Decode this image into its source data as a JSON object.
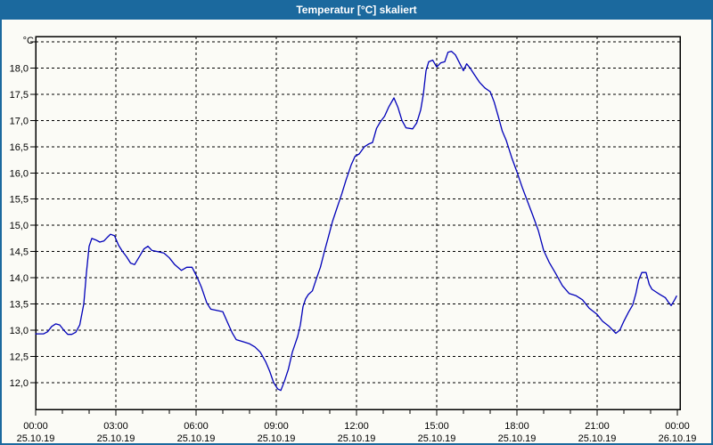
{
  "titlebar": {
    "title": "Temperatur [°C] skaliert"
  },
  "theme": {
    "titlebar_bg": "#1B699E",
    "titlebar_text": "#FFFFFF",
    "window_border": "#1B699E",
    "window_bg": "#FBFBF6",
    "plot_border": "#000000",
    "grid_color": "#000000",
    "line_color": "#0000B9"
  },
  "chart_data": {
    "type": "line",
    "title": "Temperatur [°C] skaliert",
    "unit_label": "°C",
    "xlabel": "",
    "ylabel": "°C",
    "legend": "none",
    "grid": "dashed",
    "ylim": [
      11.5,
      18.6
    ],
    "xlim_hours": [
      0,
      24.1
    ],
    "x_minor_step_hours": 1,
    "y_ticks": [
      {
        "v": 12.0,
        "label": "12,0"
      },
      {
        "v": 12.5,
        "label": "12,5"
      },
      {
        "v": 13.0,
        "label": "13,0"
      },
      {
        "v": 13.5,
        "label": "13,5"
      },
      {
        "v": 14.0,
        "label": "14,0"
      },
      {
        "v": 14.5,
        "label": "14,5"
      },
      {
        "v": 15.0,
        "label": "15,0"
      },
      {
        "v": 15.5,
        "label": "15,5"
      },
      {
        "v": 16.0,
        "label": "16,0"
      },
      {
        "v": 16.5,
        "label": "16,5"
      },
      {
        "v": 17.0,
        "label": "17,0"
      },
      {
        "v": 17.5,
        "label": "17,5"
      },
      {
        "v": 18.0,
        "label": "18,0"
      },
      {
        "v": 18.5,
        "label": ""
      }
    ],
    "x_ticks": [
      {
        "h": 0,
        "time": "00:00",
        "date": "25.10.19"
      },
      {
        "h": 3,
        "time": "03:00",
        "date": "25.10.19"
      },
      {
        "h": 6,
        "time": "06:00",
        "date": "25.10.19"
      },
      {
        "h": 9,
        "time": "09:00",
        "date": "25.10.19"
      },
      {
        "h": 12,
        "time": "12:00",
        "date": "25.10.19"
      },
      {
        "h": 15,
        "time": "15:00",
        "date": "25.10.19"
      },
      {
        "h": 18,
        "time": "18:00",
        "date": "25.10.19"
      },
      {
        "h": 21,
        "time": "21:00",
        "date": "25.10.19"
      },
      {
        "h": 24,
        "time": "00:00",
        "date": "26.10.19"
      }
    ],
    "series": [
      {
        "name": "Temperatur [°C]",
        "color": "#0000B9",
        "points": [
          [
            0,
            12.93
          ],
          [
            0.3,
            12.93
          ],
          [
            0.45,
            12.97
          ],
          [
            0.6,
            13.07
          ],
          [
            0.75,
            13.12
          ],
          [
            0.9,
            13.1
          ],
          [
            1.05,
            13.0
          ],
          [
            1.2,
            12.92
          ],
          [
            1.35,
            12.92
          ],
          [
            1.5,
            12.96
          ],
          [
            1.65,
            13.1
          ],
          [
            1.8,
            13.5
          ],
          [
            1.9,
            14.1
          ],
          [
            2.0,
            14.6
          ],
          [
            2.1,
            14.75
          ],
          [
            2.25,
            14.72
          ],
          [
            2.4,
            14.68
          ],
          [
            2.55,
            14.7
          ],
          [
            2.7,
            14.78
          ],
          [
            2.8,
            14.83
          ],
          [
            2.95,
            14.8
          ],
          [
            3.1,
            14.62
          ],
          [
            3.25,
            14.5
          ],
          [
            3.4,
            14.4
          ],
          [
            3.55,
            14.28
          ],
          [
            3.7,
            14.25
          ],
          [
            3.9,
            14.42
          ],
          [
            4.05,
            14.55
          ],
          [
            4.2,
            14.6
          ],
          [
            4.35,
            14.52
          ],
          [
            4.55,
            14.5
          ],
          [
            4.8,
            14.47
          ],
          [
            5.0,
            14.38
          ],
          [
            5.2,
            14.25
          ],
          [
            5.45,
            14.14
          ],
          [
            5.65,
            14.2
          ],
          [
            5.85,
            14.2
          ],
          [
            6.05,
            14.0
          ],
          [
            6.2,
            13.82
          ],
          [
            6.4,
            13.52
          ],
          [
            6.55,
            13.4
          ],
          [
            6.75,
            13.38
          ],
          [
            7.0,
            13.35
          ],
          [
            7.2,
            13.12
          ],
          [
            7.35,
            12.95
          ],
          [
            7.5,
            12.82
          ],
          [
            7.75,
            12.78
          ],
          [
            8.0,
            12.74
          ],
          [
            8.2,
            12.68
          ],
          [
            8.4,
            12.58
          ],
          [
            8.6,
            12.4
          ],
          [
            8.75,
            12.22
          ],
          [
            8.9,
            12.0
          ],
          [
            9.05,
            11.88
          ],
          [
            9.17,
            11.85
          ],
          [
            9.3,
            12.02
          ],
          [
            9.45,
            12.25
          ],
          [
            9.6,
            12.58
          ],
          [
            9.8,
            12.88
          ],
          [
            9.9,
            13.1
          ],
          [
            10.0,
            13.45
          ],
          [
            10.1,
            13.6
          ],
          [
            10.2,
            13.68
          ],
          [
            10.35,
            13.75
          ],
          [
            10.5,
            13.98
          ],
          [
            10.65,
            14.2
          ],
          [
            10.8,
            14.5
          ],
          [
            10.95,
            14.78
          ],
          [
            11.1,
            15.07
          ],
          [
            11.25,
            15.3
          ],
          [
            11.45,
            15.6
          ],
          [
            11.6,
            15.85
          ],
          [
            11.8,
            16.15
          ],
          [
            11.95,
            16.32
          ],
          [
            12.1,
            16.36
          ],
          [
            12.3,
            16.5
          ],
          [
            12.45,
            16.55
          ],
          [
            12.6,
            16.58
          ],
          [
            12.75,
            16.85
          ],
          [
            12.9,
            16.98
          ],
          [
            13.05,
            17.08
          ],
          [
            13.2,
            17.25
          ],
          [
            13.4,
            17.43
          ],
          [
            13.55,
            17.25
          ],
          [
            13.7,
            17.0
          ],
          [
            13.85,
            16.86
          ],
          [
            14.1,
            16.84
          ],
          [
            14.25,
            16.95
          ],
          [
            14.4,
            17.2
          ],
          [
            14.5,
            17.5
          ],
          [
            14.6,
            17.95
          ],
          [
            14.7,
            18.12
          ],
          [
            14.85,
            18.15
          ],
          [
            15.0,
            18.02
          ],
          [
            15.15,
            18.1
          ],
          [
            15.3,
            18.12
          ],
          [
            15.42,
            18.3
          ],
          [
            15.55,
            18.32
          ],
          [
            15.7,
            18.25
          ],
          [
            15.85,
            18.1
          ],
          [
            16.0,
            17.95
          ],
          [
            16.12,
            18.08
          ],
          [
            16.25,
            18.0
          ],
          [
            16.4,
            17.88
          ],
          [
            16.6,
            17.73
          ],
          [
            16.8,
            17.62
          ],
          [
            17.0,
            17.55
          ],
          [
            17.15,
            17.35
          ],
          [
            17.3,
            17.08
          ],
          [
            17.45,
            16.8
          ],
          [
            17.6,
            16.62
          ],
          [
            17.8,
            16.3
          ],
          [
            18.0,
            16.02
          ],
          [
            18.2,
            15.72
          ],
          [
            18.4,
            15.45
          ],
          [
            18.6,
            15.18
          ],
          [
            18.8,
            14.9
          ],
          [
            19.0,
            14.52
          ],
          [
            19.2,
            14.3
          ],
          [
            19.45,
            14.08
          ],
          [
            19.7,
            13.85
          ],
          [
            19.95,
            13.7
          ],
          [
            20.2,
            13.66
          ],
          [
            20.45,
            13.58
          ],
          [
            20.7,
            13.42
          ],
          [
            21.0,
            13.3
          ],
          [
            21.2,
            13.17
          ],
          [
            21.45,
            13.07
          ],
          [
            21.7,
            12.94
          ],
          [
            21.85,
            13.0
          ],
          [
            22.0,
            13.17
          ],
          [
            22.17,
            13.34
          ],
          [
            22.33,
            13.48
          ],
          [
            22.45,
            13.7
          ],
          [
            22.55,
            13.95
          ],
          [
            22.67,
            14.1
          ],
          [
            22.83,
            14.1
          ],
          [
            22.95,
            13.87
          ],
          [
            23.05,
            13.78
          ],
          [
            23.2,
            13.73
          ],
          [
            23.35,
            13.68
          ],
          [
            23.55,
            13.62
          ],
          [
            23.67,
            13.53
          ],
          [
            23.77,
            13.47
          ],
          [
            23.9,
            13.58
          ],
          [
            23.97,
            13.65
          ]
        ]
      }
    ]
  }
}
